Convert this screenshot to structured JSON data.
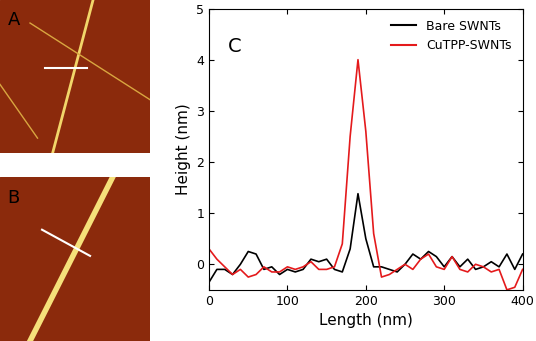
{
  "chart_data": [
    {
      "type": "image",
      "label": "A"
    },
    {
      "type": "image",
      "label": "B"
    },
    {
      "type": "line",
      "label": "C",
      "xlabel": "Length (nm)",
      "ylabel": "Height (nm)",
      "xlim": [
        0,
        400
      ],
      "ylim": [
        -0.5,
        5
      ],
      "xticks": [
        0,
        100,
        200,
        300,
        400
      ],
      "yticks": [
        0,
        1,
        2,
        3,
        4,
        5
      ],
      "legend": "upper right",
      "x": [
        0,
        10,
        20,
        30,
        40,
        50,
        60,
        70,
        80,
        90,
        100,
        110,
        120,
        130,
        140,
        150,
        160,
        170,
        180,
        190,
        200,
        210,
        220,
        230,
        240,
        250,
        260,
        270,
        280,
        290,
        300,
        310,
        320,
        330,
        340,
        350,
        360,
        370,
        380,
        390,
        400
      ],
      "series": [
        {
          "name": "Bare SWNTs",
          "color": "#000000",
          "values": [
            -0.35,
            -0.1,
            -0.1,
            -0.2,
            0.0,
            0.25,
            0.2,
            -0.1,
            -0.05,
            -0.2,
            -0.1,
            -0.15,
            -0.1,
            0.1,
            0.05,
            0.1,
            -0.1,
            -0.15,
            0.3,
            1.38,
            0.5,
            -0.05,
            -0.05,
            -0.1,
            -0.15,
            0.0,
            0.2,
            0.1,
            0.25,
            0.15,
            -0.05,
            0.15,
            -0.05,
            0.1,
            -0.1,
            -0.05,
            0.05,
            -0.05,
            0.2,
            -0.1,
            0.2
          ]
        },
        {
          "name": "CuTPP-SWNTs",
          "color": "#e41a1c",
          "values": [
            0.3,
            0.1,
            -0.05,
            -0.2,
            -0.1,
            -0.25,
            -0.2,
            -0.05,
            -0.15,
            -0.15,
            -0.05,
            -0.1,
            -0.05,
            0.05,
            -0.1,
            -0.1,
            -0.05,
            0.4,
            2.5,
            4.0,
            2.6,
            0.6,
            -0.25,
            -0.2,
            -0.1,
            0.0,
            -0.1,
            0.1,
            0.2,
            -0.05,
            -0.1,
            0.15,
            -0.1,
            -0.15,
            0.0,
            -0.05,
            -0.15,
            -0.1,
            -0.5,
            -0.45,
            -0.1
          ]
        }
      ]
    }
  ]
}
